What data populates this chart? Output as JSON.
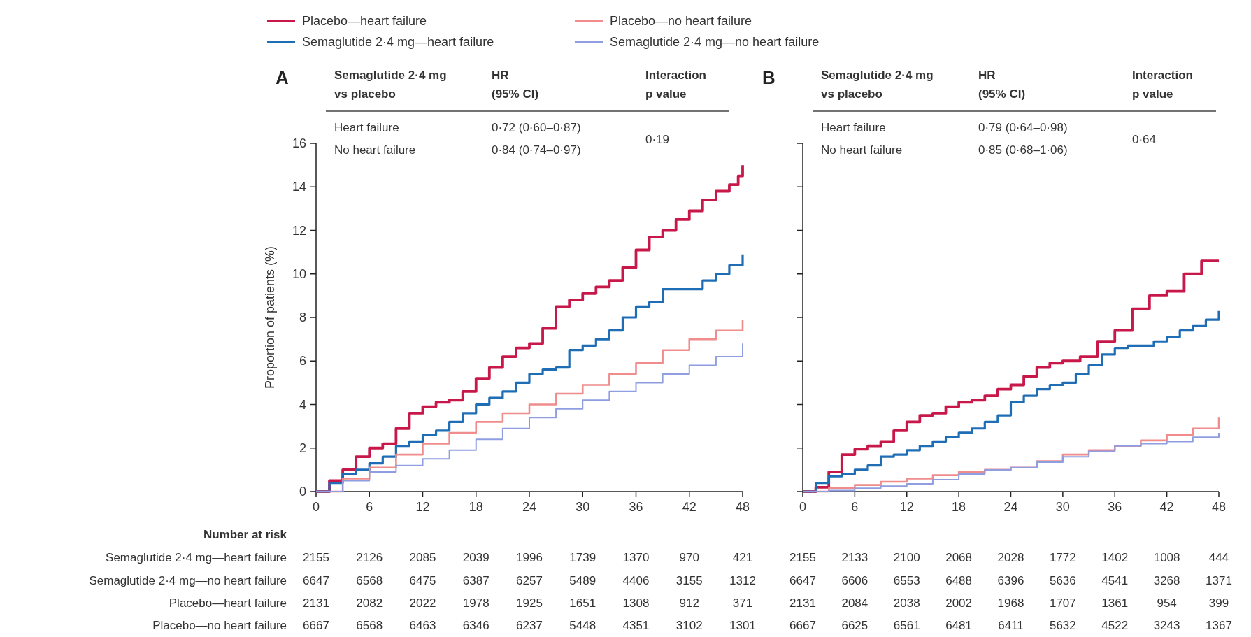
{
  "chart_data": [
    {
      "type": "step",
      "title": "A",
      "ylabel": "Proportion of patients (%)",
      "xlim": [
        0,
        48
      ],
      "xticks": [
        0,
        6,
        12,
        18,
        24,
        30,
        36,
        42,
        48
      ],
      "ylim": [
        0,
        16
      ],
      "yticks": [
        0,
        2,
        4,
        6,
        8,
        10,
        12,
        14,
        16
      ],
      "legend": "top",
      "line_style": "solid",
      "series": [
        {
          "name": "Placebo—heart failure",
          "color": "#c8184a",
          "x": [
            0,
            1.5,
            3,
            4.5,
            6,
            7.5,
            9,
            10.5,
            12,
            13.5,
            15,
            16.5,
            18,
            19.5,
            21,
            22.5,
            24,
            25.5,
            27,
            28.5,
            30,
            31.5,
            33,
            34.5,
            36,
            37.5,
            39,
            40.5,
            42,
            43.5,
            45,
            46.5,
            47.5,
            48
          ],
          "values": [
            0,
            0.5,
            1.0,
            1.6,
            2.0,
            2.2,
            2.9,
            3.6,
            3.9,
            4.1,
            4.2,
            4.6,
            5.2,
            5.7,
            6.2,
            6.6,
            6.8,
            7.5,
            8.5,
            8.8,
            9.1,
            9.4,
            9.7,
            10.3,
            11.1,
            11.7,
            12.0,
            12.5,
            12.9,
            13.4,
            13.8,
            14.1,
            14.5,
            15.0
          ]
        },
        {
          "name": "Semaglutide 2·4 mg—heart failure",
          "color": "#1f6db5",
          "x": [
            0,
            1.5,
            3,
            4.5,
            6,
            7.5,
            9,
            10.5,
            12,
            13.5,
            15,
            16.5,
            18,
            19.5,
            21,
            22.5,
            24,
            25.5,
            27,
            28.5,
            30,
            31.5,
            33,
            34.5,
            36,
            37.5,
            39,
            40.5,
            42,
            43.5,
            45,
            46.5,
            48
          ],
          "values": [
            0,
            0.4,
            0.8,
            1.0,
            1.3,
            1.6,
            2.1,
            2.3,
            2.6,
            2.8,
            3.2,
            3.6,
            4.0,
            4.3,
            4.6,
            5.0,
            5.4,
            5.6,
            5.7,
            6.5,
            6.7,
            7.0,
            7.4,
            8.0,
            8.5,
            8.7,
            9.3,
            9.3,
            9.3,
            9.7,
            10.0,
            10.4,
            10.9
          ]
        },
        {
          "name": "Placebo—no heart failure",
          "color": "#f08c8c",
          "x": [
            0,
            3,
            6,
            9,
            12,
            15,
            18,
            21,
            24,
            27,
            30,
            33,
            36,
            39,
            42,
            45,
            48
          ],
          "values": [
            0,
            0.6,
            1.1,
            1.7,
            2.2,
            2.7,
            3.2,
            3.6,
            4.0,
            4.5,
            4.9,
            5.4,
            5.9,
            6.5,
            7.0,
            7.4,
            7.9
          ]
        },
        {
          "name": "Semaglutide 2·4 mg—no heart failure",
          "color": "#8e9ee0",
          "x": [
            0,
            3,
            6,
            9,
            12,
            15,
            18,
            21,
            24,
            27,
            30,
            33,
            36,
            39,
            42,
            45,
            48
          ],
          "values": [
            0,
            0.5,
            0.9,
            1.2,
            1.5,
            1.9,
            2.4,
            2.9,
            3.4,
            3.8,
            4.2,
            4.6,
            5.0,
            5.4,
            5.8,
            6.2,
            6.8
          ]
        }
      ],
      "annotations": [
        "Semaglutide 2·4 mg",
        "vs placebo",
        "HR",
        "(95% CI)",
        "Interaction",
        "p value",
        "Heart failure",
        "0·72 (0·60–0·87)",
        "No heart failure",
        "0·84 (0·74–0·97)",
        "0·19",
        "Number at risk",
        "Semaglutide 2·4 mg—heart failure",
        "2155 2126 2085 2039 1996 1739 1370 970 421",
        "Semaglutide 2·4 mg—no heart failure",
        "6647 6568 6475 6387 6257 5489 4406 3155 1312",
        "Placebo—heart failure",
        "2131 2082 2022 1978 1925 1651 1308 912 371",
        "Placebo—no heart failure",
        "6667 6568 6463 6346 6237 5448 4351 3102 1301"
      ]
    },
    {
      "type": "step",
      "title": "B",
      "xlim": [
        0,
        48
      ],
      "xticks": [
        0,
        6,
        12,
        18,
        24,
        30,
        36,
        42,
        48
      ],
      "ylim": [
        0,
        16
      ],
      "yticks": [
        0,
        2,
        4,
        6,
        8,
        10,
        12,
        14,
        16
      ],
      "tick_labels": "x",
      "line_style": "solid",
      "series": [
        {
          "color": "#c8184a",
          "x": [
            0,
            1.5,
            3,
            4.5,
            6,
            7.5,
            9,
            10.5,
            12,
            13.5,
            15,
            16.5,
            18,
            19.5,
            21,
            22.5,
            24,
            25.5,
            27,
            28.5,
            30,
            32,
            34,
            36,
            38,
            40,
            42,
            44,
            46,
            48
          ],
          "values": [
            0,
            0.2,
            0.9,
            1.7,
            1.95,
            2.1,
            2.3,
            2.8,
            3.2,
            3.5,
            3.6,
            3.9,
            4.1,
            4.2,
            4.4,
            4.7,
            4.9,
            5.3,
            5.7,
            5.9,
            6.0,
            6.2,
            6.9,
            7.4,
            8.4,
            9.0,
            9.2,
            10.0,
            10.6,
            10.6
          ]
        },
        {
          "color": "#1f6db5",
          "x": [
            0,
            1.5,
            3,
            4.5,
            6,
            7.5,
            9,
            10.5,
            12,
            13.5,
            15,
            16.5,
            18,
            19.5,
            21,
            22.5,
            24,
            25.5,
            27,
            28.5,
            30,
            31.5,
            33,
            34.5,
            36,
            37.5,
            39,
            40.5,
            42,
            43.5,
            45,
            46.5,
            48
          ],
          "values": [
            0,
            0.4,
            0.7,
            0.8,
            1.0,
            1.2,
            1.6,
            1.7,
            1.9,
            2.1,
            2.3,
            2.5,
            2.7,
            2.9,
            3.2,
            3.5,
            4.1,
            4.4,
            4.7,
            4.9,
            5.0,
            5.4,
            5.8,
            6.3,
            6.6,
            6.7,
            6.7,
            6.9,
            7.1,
            7.4,
            7.6,
            7.9,
            8.3
          ]
        },
        {
          "color": "#f08c8c",
          "x": [
            0,
            3,
            6,
            9,
            12,
            15,
            18,
            21,
            24,
            27,
            30,
            33,
            36,
            39,
            42,
            45,
            48
          ],
          "values": [
            0,
            0.15,
            0.3,
            0.45,
            0.6,
            0.75,
            0.9,
            1.0,
            1.1,
            1.4,
            1.7,
            1.9,
            2.1,
            2.35,
            2.6,
            2.9,
            3.4
          ]
        },
        {
          "color": "#8e9ee0",
          "x": [
            0,
            3,
            6,
            9,
            12,
            15,
            18,
            21,
            24,
            27,
            30,
            33,
            36,
            39,
            42,
            45,
            48
          ],
          "values": [
            0,
            0.05,
            0.15,
            0.25,
            0.35,
            0.55,
            0.8,
            1.0,
            1.1,
            1.35,
            1.6,
            1.85,
            2.1,
            2.2,
            2.3,
            2.5,
            2.7
          ]
        }
      ],
      "annotations": [
        "Semaglutide 2·4 mg",
        "vs placebo",
        "HR",
        "(95% CI)",
        "Interaction",
        "p value",
        "Heart failure",
        "0·79 (0·64–0·98)",
        "No heart failure",
        "0·85 (0·68–1·06)",
        "0·64",
        "2155 2133 2100 2068 2028 1772 1402 1008 444",
        "6647 6606 6553 6488 6396 5636 4541 3268 1371",
        "2131 2084 2038 2002 1968 1707 1361 954 399",
        "6667 6625 6561 6481 6411 5632 4522 3243 1367"
      ]
    }
  ]
}
